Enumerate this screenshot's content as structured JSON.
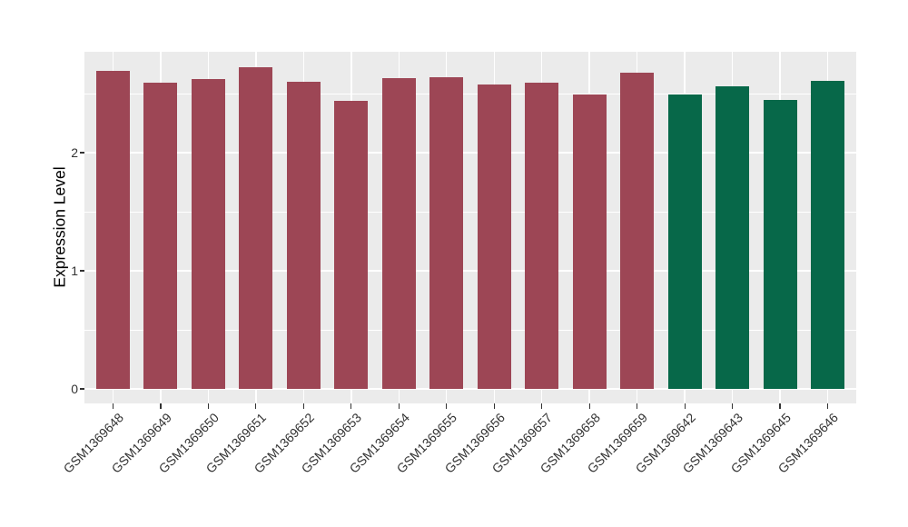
{
  "chart_data": {
    "type": "bar",
    "title": "",
    "xlabel": "",
    "ylabel": "Expression Level",
    "categories": [
      "GSM1369648",
      "GSM1369649",
      "GSM1369650",
      "GSM1369651",
      "GSM1369652",
      "GSM1369653",
      "GSM1369654",
      "GSM1369655",
      "GSM1369656",
      "GSM1369657",
      "GSM1369658",
      "GSM1369659",
      "GSM1369642",
      "GSM1369643",
      "GSM1369645",
      "GSM1369646"
    ],
    "values": [
      2.69,
      2.59,
      2.62,
      2.72,
      2.6,
      2.44,
      2.63,
      2.64,
      2.58,
      2.59,
      2.49,
      2.68,
      2.49,
      2.56,
      2.45,
      2.61
    ],
    "bar_colors": [
      "#9D4655",
      "#9D4655",
      "#9D4655",
      "#9D4655",
      "#9D4655",
      "#9D4655",
      "#9D4655",
      "#9D4655",
      "#9D4655",
      "#9D4655",
      "#9D4655",
      "#9D4655",
      "#076849",
      "#076849",
      "#076849",
      "#076849"
    ],
    "yticks": [
      0,
      1,
      2
    ],
    "yticks_minor": [
      0.5,
      1.5,
      2.5
    ],
    "ylim": [
      -0.12,
      2.85
    ],
    "grid": true,
    "legend": "none",
    "x_tick_rotation_deg": 45,
    "colors": {
      "panel_background": "#EBEBEB",
      "grid_major": "#FFFFFF",
      "grid_minor": "#FFFFFF",
      "tick_label": "#333333",
      "axis_title": "#000000",
      "figure_background": "#FFFFFF"
    }
  }
}
